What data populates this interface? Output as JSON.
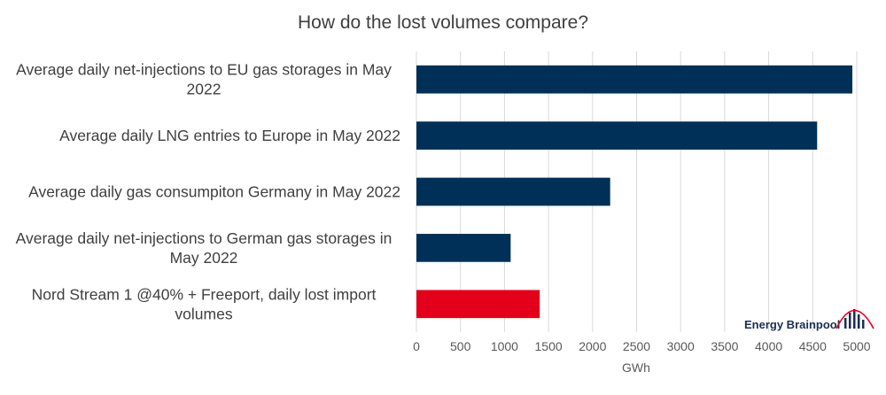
{
  "chart_data": {
    "type": "bar",
    "orientation": "horizontal",
    "title": "How do the lost volumes compare?",
    "xlabel": "GWh",
    "ylabel": "",
    "xlim": [
      0,
      5000
    ],
    "x_ticks": [
      0,
      500,
      1000,
      1500,
      2000,
      2500,
      3000,
      3500,
      4000,
      4500,
      5000
    ],
    "grid": "vertical",
    "legend": "none",
    "categories": [
      [
        "Average daily net-injections to EU gas storages in May",
        "2022"
      ],
      [
        "Average daily LNG entries to Europe in May 2022"
      ],
      [
        "Average daily gas consumpiton Germany in May 2022"
      ],
      [
        "Average daily net-injections to German gas storages in",
        "May 2022"
      ],
      [
        "Nord Stream 1 @40% + Freeport, daily lost import",
        "volumes"
      ]
    ],
    "values": [
      4950,
      4550,
      2200,
      1070,
      1400
    ],
    "bar_colors": [
      "#003057",
      "#003057",
      "#003057",
      "#003057",
      "#e2001a"
    ]
  },
  "logo": {
    "text": "Energy Brainpool",
    "colors": [
      "#1c2e52",
      "#e2001a"
    ]
  }
}
